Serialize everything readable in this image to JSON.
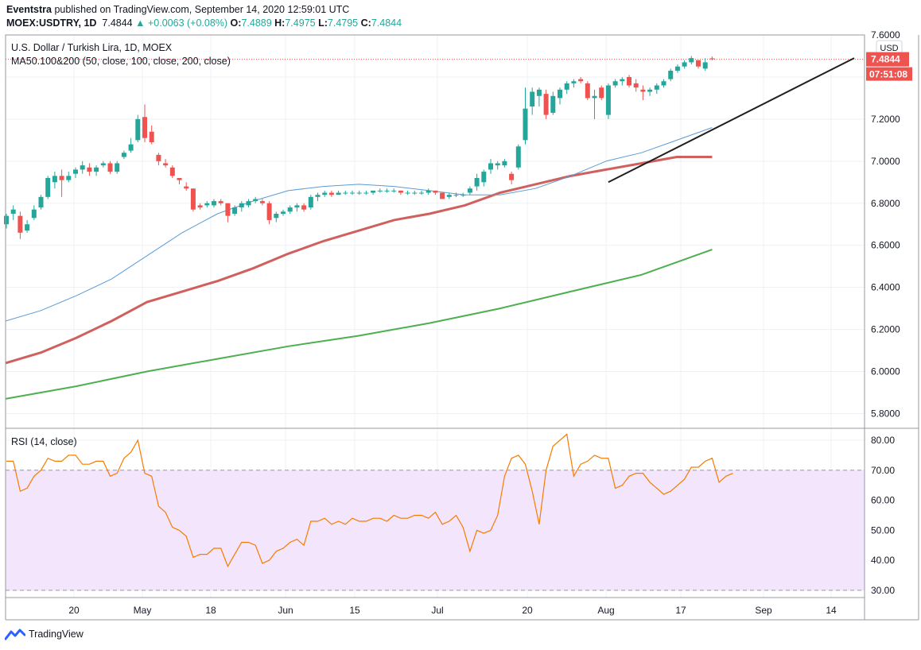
{
  "header": {
    "publisher": "Eventstra",
    "published_text": "published on TradingView.com, September 14, 2020 12:59:01 UTC",
    "symbol": "MOEX:USDTRY, 1D",
    "last": "7.4844",
    "change": "+0.0063 (+0.08%)",
    "open_label": "O:",
    "open": "7.4889",
    "high_label": "H:",
    "high": "7.4975",
    "low_label": "L:",
    "low": "7.4795",
    "close_label": "C:",
    "close": "7.4844"
  },
  "brand": {
    "name": "TradingView"
  },
  "colors": {
    "up": "#26a69a",
    "down": "#ef5350",
    "ma50": "#5b9bd5",
    "ma100": "#d0605e",
    "ma200": "#4caf50",
    "rsi": "#f57c00",
    "rsi_band": "#f3e5fb",
    "trendline": "#1f1f1f"
  },
  "chart_data": [
    {
      "type": "candlestick",
      "title": "U.S. Dollar / Turkish Lira, 1D, MOEX",
      "indicator_label": "MA50.100&200 (50, close, 100, close, 200, close)",
      "currency_label": "USD",
      "ylim": [
        5.73,
        7.6
      ],
      "yticks": [
        "7.6000",
        "7.2000",
        "7.0000",
        "6.8000",
        "6.6000",
        "6.4000",
        "6.2000",
        "6.0000",
        "5.8000"
      ],
      "xticks": [
        "20",
        "May",
        "18",
        "Jun",
        "15",
        "Jul",
        "20",
        "Aug",
        "17",
        "Sep",
        "14"
      ],
      "last_price_label": "7.4844",
      "countdown_label": "07:51:08",
      "candles": [
        [
          6.7,
          6.75,
          6.68,
          6.74
        ],
        [
          6.75,
          6.79,
          6.72,
          6.77
        ],
        [
          6.74,
          6.76,
          6.63,
          6.66
        ],
        [
          6.67,
          6.72,
          6.66,
          6.7
        ],
        [
          6.73,
          6.79,
          6.72,
          6.77
        ],
        [
          6.78,
          6.84,
          6.77,
          6.83
        ],
        [
          6.83,
          6.93,
          6.82,
          6.92
        ],
        [
          6.9,
          6.95,
          6.87,
          6.93
        ],
        [
          6.93,
          6.96,
          6.83,
          6.91
        ],
        [
          6.91,
          6.95,
          6.9,
          6.93
        ],
        [
          6.94,
          6.97,
          6.92,
          6.96
        ],
        [
          6.96,
          7.0,
          6.94,
          6.98
        ],
        [
          6.97,
          6.99,
          6.93,
          6.95
        ],
        [
          6.95,
          6.98,
          6.93,
          6.97
        ],
        [
          6.98,
          7.0,
          6.97,
          6.99
        ],
        [
          6.99,
          7.0,
          6.94,
          6.95
        ],
        [
          6.95,
          7.0,
          6.94,
          6.99
        ],
        [
          7.02,
          7.05,
          7.01,
          7.04
        ],
        [
          7.05,
          7.11,
          7.04,
          7.08
        ],
        [
          7.1,
          7.22,
          7.09,
          7.2
        ],
        [
          7.21,
          7.27,
          7.09,
          7.11
        ],
        [
          7.14,
          7.17,
          7.08,
          7.09
        ],
        [
          7.03,
          7.04,
          6.98,
          7.0
        ],
        [
          6.99,
          7.01,
          6.97,
          6.98
        ],
        [
          6.97,
          6.98,
          6.92,
          6.93
        ],
        [
          6.92,
          6.92,
          6.89,
          6.91
        ],
        [
          6.88,
          6.9,
          6.86,
          6.87
        ],
        [
          6.87,
          6.87,
          6.76,
          6.77
        ],
        [
          6.79,
          6.8,
          6.77,
          6.78
        ],
        [
          6.79,
          6.81,
          6.78,
          6.8
        ],
        [
          6.79,
          6.82,
          6.78,
          6.81
        ],
        [
          6.81,
          6.82,
          6.79,
          6.8
        ],
        [
          6.8,
          6.8,
          6.71,
          6.74
        ],
        [
          6.75,
          6.79,
          6.74,
          6.78
        ],
        [
          6.78,
          6.81,
          6.76,
          6.8
        ],
        [
          6.79,
          6.82,
          6.78,
          6.81
        ],
        [
          6.81,
          6.83,
          6.8,
          6.82
        ],
        [
          6.81,
          6.82,
          6.79,
          6.8
        ],
        [
          6.8,
          6.81,
          6.7,
          6.72
        ],
        [
          6.73,
          6.76,
          6.71,
          6.75
        ],
        [
          6.75,
          6.77,
          6.74,
          6.76
        ],
        [
          6.76,
          6.79,
          6.75,
          6.78
        ],
        [
          6.78,
          6.8,
          6.76,
          6.79
        ],
        [
          6.79,
          6.8,
          6.76,
          6.77
        ],
        [
          6.78,
          6.84,
          6.77,
          6.83
        ],
        [
          6.83,
          6.85,
          6.81,
          6.84
        ],
        [
          6.84,
          6.86,
          6.83,
          6.85
        ],
        [
          6.85,
          6.86,
          6.83,
          6.84
        ],
        [
          6.84,
          6.86,
          6.84,
          6.85
        ],
        [
          6.85,
          6.86,
          6.84,
          6.85
        ],
        [
          6.85,
          6.86,
          6.84,
          6.85
        ],
        [
          6.85,
          6.86,
          6.84,
          6.85
        ],
        [
          6.85,
          6.86,
          6.84,
          6.85
        ],
        [
          6.85,
          6.86,
          6.84,
          6.86
        ],
        [
          6.86,
          6.87,
          6.85,
          6.86
        ],
        [
          6.86,
          6.87,
          6.85,
          6.86
        ],
        [
          6.86,
          6.87,
          6.85,
          6.86
        ],
        [
          6.86,
          6.86,
          6.84,
          6.85
        ],
        [
          6.85,
          6.86,
          6.84,
          6.85
        ],
        [
          6.85,
          6.86,
          6.84,
          6.85
        ],
        [
          6.85,
          6.86,
          6.84,
          6.85
        ],
        [
          6.85,
          6.87,
          6.84,
          6.86
        ],
        [
          6.86,
          6.86,
          6.84,
          6.85
        ],
        [
          6.85,
          6.85,
          6.82,
          6.82
        ],
        [
          6.83,
          6.85,
          6.82,
          6.84
        ],
        [
          6.84,
          6.85,
          6.83,
          6.84
        ],
        [
          6.84,
          6.85,
          6.83,
          6.84
        ],
        [
          6.85,
          6.88,
          6.84,
          6.87
        ],
        [
          6.88,
          6.94,
          6.86,
          6.92
        ],
        [
          6.9,
          6.96,
          6.88,
          6.95
        ],
        [
          6.96,
          7.01,
          6.94,
          6.99
        ],
        [
          6.98,
          7.0,
          6.96,
          6.99
        ],
        [
          6.98,
          7.01,
          6.97,
          7.0
        ],
        [
          6.94,
          6.95,
          6.89,
          6.91
        ],
        [
          6.97,
          7.08,
          6.96,
          7.07
        ],
        [
          7.1,
          7.35,
          7.08,
          7.25
        ],
        [
          7.26,
          7.35,
          7.22,
          7.33
        ],
        [
          7.31,
          7.35,
          7.26,
          7.34
        ],
        [
          7.32,
          7.34,
          7.2,
          7.22
        ],
        [
          7.23,
          7.33,
          7.22,
          7.31
        ],
        [
          7.3,
          7.35,
          7.27,
          7.34
        ],
        [
          7.34,
          7.38,
          7.32,
          7.37
        ],
        [
          7.37,
          7.39,
          7.35,
          7.38
        ],
        [
          7.39,
          7.4,
          7.37,
          7.38
        ],
        [
          7.37,
          7.38,
          7.29,
          7.3
        ],
        [
          7.3,
          7.34,
          7.2,
          7.31
        ],
        [
          7.35,
          7.36,
          7.29,
          7.3
        ],
        [
          7.22,
          7.37,
          7.2,
          7.36
        ],
        [
          7.36,
          7.39,
          7.35,
          7.38
        ],
        [
          7.38,
          7.4,
          7.36,
          7.39
        ],
        [
          7.4,
          7.41,
          7.35,
          7.36
        ],
        [
          7.37,
          7.39,
          7.33,
          7.35
        ],
        [
          7.34,
          7.36,
          7.29,
          7.33
        ],
        [
          7.33,
          7.35,
          7.31,
          7.34
        ],
        [
          7.34,
          7.37,
          7.32,
          7.36
        ],
        [
          7.36,
          7.39,
          7.35,
          7.38
        ],
        [
          7.39,
          7.44,
          7.38,
          7.43
        ],
        [
          7.43,
          7.46,
          7.42,
          7.45
        ],
        [
          7.45,
          7.48,
          7.44,
          7.47
        ],
        [
          7.47,
          7.5,
          7.46,
          7.49
        ],
        [
          7.48,
          7.48,
          7.44,
          7.45
        ],
        [
          7.44,
          7.49,
          7.43,
          7.47
        ],
        [
          7.4889,
          7.4975,
          7.4795,
          7.4844
        ]
      ],
      "ma50": [
        [
          0,
          6.24
        ],
        [
          0.05,
          6.29
        ],
        [
          0.1,
          6.36
        ],
        [
          0.15,
          6.44
        ],
        [
          0.2,
          6.55
        ],
        [
          0.25,
          6.66
        ],
        [
          0.3,
          6.75
        ],
        [
          0.35,
          6.81
        ],
        [
          0.4,
          6.86
        ],
        [
          0.45,
          6.88
        ],
        [
          0.5,
          6.89
        ],
        [
          0.55,
          6.88
        ],
        [
          0.6,
          6.86
        ],
        [
          0.65,
          6.84
        ],
        [
          0.7,
          6.84
        ],
        [
          0.75,
          6.87
        ],
        [
          0.8,
          6.93
        ],
        [
          0.85,
          7.0
        ],
        [
          0.9,
          7.04
        ],
        [
          0.95,
          7.1
        ],
        [
          1.0,
          7.16
        ]
      ],
      "ma100": [
        [
          0,
          6.04
        ],
        [
          0.05,
          6.09
        ],
        [
          0.1,
          6.16
        ],
        [
          0.15,
          6.24
        ],
        [
          0.2,
          6.33
        ],
        [
          0.25,
          6.38
        ],
        [
          0.3,
          6.43
        ],
        [
          0.35,
          6.49
        ],
        [
          0.4,
          6.56
        ],
        [
          0.45,
          6.62
        ],
        [
          0.5,
          6.67
        ],
        [
          0.55,
          6.72
        ],
        [
          0.6,
          6.75
        ],
        [
          0.65,
          6.79
        ],
        [
          0.7,
          6.85
        ],
        [
          0.75,
          6.89
        ],
        [
          0.8,
          6.93
        ],
        [
          0.85,
          6.96
        ],
        [
          0.9,
          6.99
        ],
        [
          0.95,
          7.02
        ],
        [
          1.0,
          7.02
        ]
      ],
      "ma200": [
        [
          0,
          5.87
        ],
        [
          0.1,
          5.93
        ],
        [
          0.2,
          6.0
        ],
        [
          0.3,
          6.06
        ],
        [
          0.4,
          6.12
        ],
        [
          0.5,
          6.17
        ],
        [
          0.6,
          6.23
        ],
        [
          0.7,
          6.3
        ],
        [
          0.75,
          6.34
        ],
        [
          0.8,
          6.38
        ],
        [
          0.85,
          6.42
        ],
        [
          0.9,
          6.46
        ],
        [
          0.95,
          6.52
        ],
        [
          1.0,
          6.58
        ]
      ]
    },
    {
      "type": "line",
      "title": "RSI (14, close)",
      "ylim": [
        27.6,
        83.7
      ],
      "yticks": [
        "80.00",
        "70.00",
        "60.00",
        "50.00",
        "40.00",
        "30.00"
      ],
      "band": [
        30,
        70
      ],
      "values": [
        73,
        73,
        63,
        64,
        68,
        70,
        74,
        73,
        73,
        75,
        75,
        72,
        72,
        73,
        73,
        68,
        69,
        74,
        76,
        80,
        69,
        68,
        58,
        56,
        51,
        50,
        48,
        41,
        42,
        42,
        44,
        44,
        38,
        42,
        46,
        46,
        45,
        39,
        40,
        43,
        44,
        46,
        47,
        45,
        53,
        53,
        54,
        52,
        53,
        52,
        54,
        53,
        53,
        54,
        54,
        53,
        55,
        54,
        54,
        55,
        55,
        54,
        56,
        52,
        53,
        55,
        51,
        43,
        50,
        49,
        50,
        55,
        68,
        74,
        75,
        72,
        63,
        52,
        70,
        78,
        80,
        82,
        68,
        72,
        73,
        75,
        74,
        74,
        64,
        65,
        68,
        69,
        69,
        66,
        64,
        62,
        63,
        65,
        67,
        71,
        71,
        73,
        74,
        66,
        68,
        69
      ]
    }
  ]
}
